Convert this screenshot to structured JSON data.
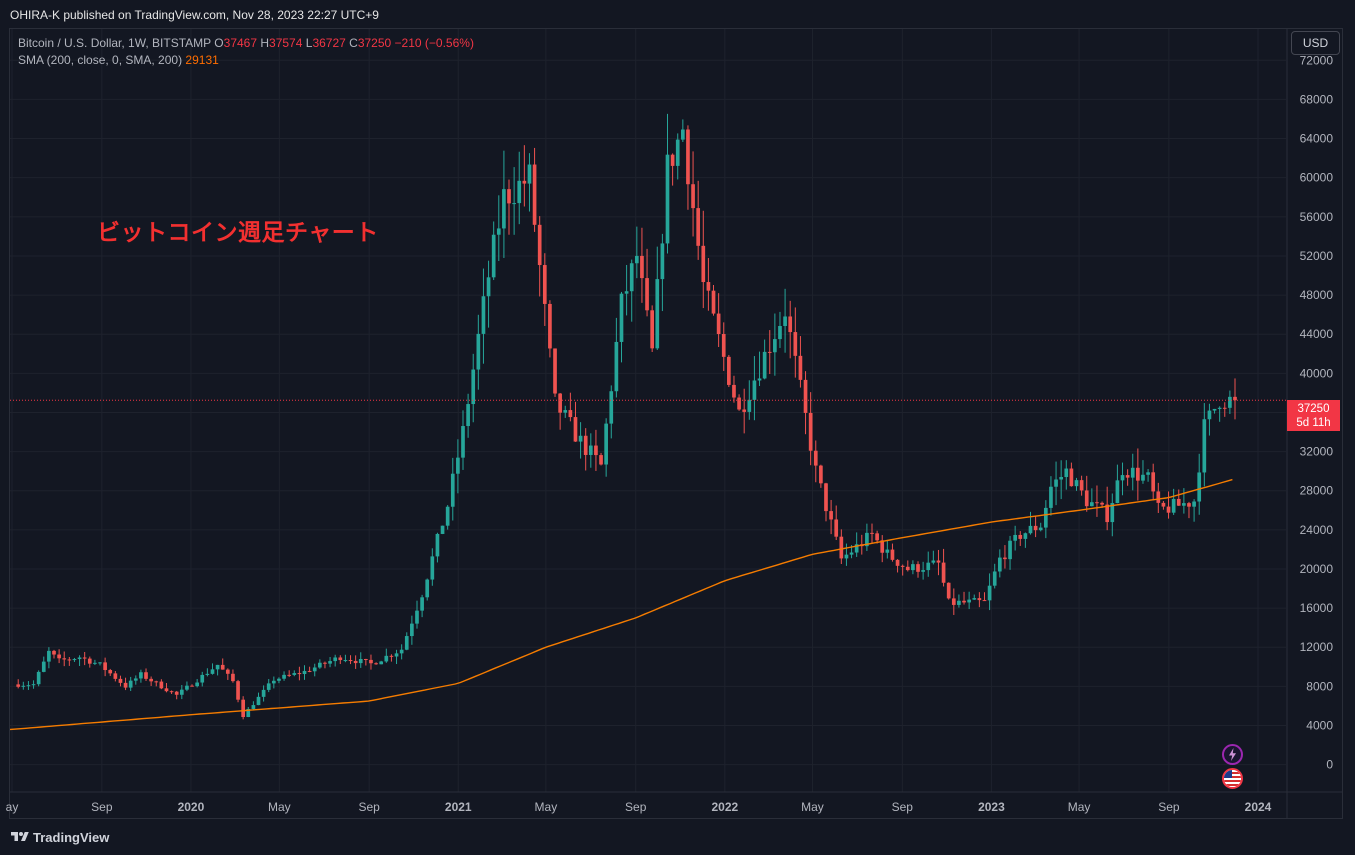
{
  "header": {
    "published": "OHIRA-K published on TradingView.com, Nov 28, 2023 22:27 UTC+9"
  },
  "legend": {
    "symbol": "Bitcoin / U.S. Dollar, 1W, BITSTAMP",
    "o_label": "O",
    "o": "37467",
    "h_label": "H",
    "h": "37574",
    "l_label": "L",
    "l": "36727",
    "c_label": "C",
    "c": "37250",
    "change": "−210 (−0.56%)",
    "sma_label": "SMA (200, close, 0, SMA, 200)",
    "sma_value": "29131"
  },
  "annotation": "ビットコイン週足チャート",
  "currency_button": "USD",
  "last_price": {
    "value": "37250",
    "countdown": "5d 11h"
  },
  "footer": {
    "brand": "TradingView"
  },
  "icons": {
    "flash": "lightning-icon",
    "flag": "us-flag-icon"
  },
  "colors": {
    "up": "#26a69a",
    "down": "#ef5350",
    "sma": "#f57c00",
    "background": "#131722",
    "grid": "#1e222d"
  },
  "chart_data": {
    "type": "candlestick",
    "interval": "1W",
    "y_ticks": [
      0,
      4000,
      8000,
      12000,
      16000,
      20000,
      24000,
      28000,
      32000,
      36000,
      40000,
      44000,
      48000,
      52000,
      56000,
      60000,
      64000,
      68000,
      72000
    ],
    "ylim": [
      -2800,
      75200
    ],
    "x_ticks": [
      "ay",
      "Sep",
      "2020",
      "May",
      "Sep",
      "2021",
      "May",
      "Sep",
      "2022",
      "May",
      "Sep",
      "2023",
      "May",
      "Sep",
      "2024"
    ],
    "x_tick_dates": [
      "2019-05-01",
      "2019-09-01",
      "2020-01-01",
      "2020-05-01",
      "2020-09-01",
      "2021-01-01",
      "2021-05-01",
      "2021-09-01",
      "2022-01-01",
      "2022-05-01",
      "2022-09-01",
      "2023-01-01",
      "2023-05-01",
      "2023-09-01",
      "2024-01-01"
    ],
    "bold_ticks": [
      "2020",
      "2021",
      "2022",
      "2023",
      "2024"
    ],
    "price_anchors": [
      [
        "2019-06-03",
        8200
      ],
      [
        "2019-06-24",
        11500
      ],
      [
        "2019-07-08",
        10600
      ],
      [
        "2019-08-05",
        11000
      ],
      [
        "2019-09-02",
        10200
      ],
      [
        "2019-10-07",
        8000
      ],
      [
        "2019-10-28",
        9200
      ],
      [
        "2019-12-16",
        7100
      ],
      [
        "2020-02-10",
        10200
      ],
      [
        "2020-03-02",
        8500
      ],
      [
        "2020-03-16",
        5000
      ],
      [
        "2020-04-27",
        8700
      ],
      [
        "2020-06-08",
        9500
      ],
      [
        "2020-07-27",
        11000
      ],
      [
        "2020-09-07",
        10300
      ],
      [
        "2020-10-19",
        11800
      ],
      [
        "2020-11-16",
        17500
      ],
      [
        "2020-12-21",
        26500
      ],
      [
        "2021-01-11",
        34000
      ],
      [
        "2021-02-15",
        50000
      ],
      [
        "2021-03-08",
        58000
      ],
      [
        "2021-04-12",
        60000
      ],
      [
        "2021-05-17",
        37000
      ],
      [
        "2021-06-21",
        33000
      ],
      [
        "2021-07-19",
        30500
      ],
      [
        "2021-08-16",
        47000
      ],
      [
        "2021-09-06",
        52000
      ],
      [
        "2021-09-27",
        42000
      ],
      [
        "2021-10-18",
        61000
      ],
      [
        "2021-11-08",
        65000
      ],
      [
        "2021-12-06",
        49000
      ],
      [
        "2022-01-24",
        36000
      ],
      [
        "2022-03-28",
        46500
      ],
      [
        "2022-05-09",
        30000
      ],
      [
        "2022-06-13",
        21000
      ],
      [
        "2022-07-25",
        23500
      ],
      [
        "2022-08-15",
        21500
      ],
      [
        "2022-09-12",
        20000
      ],
      [
        "2022-10-24",
        20500
      ],
      [
        "2022-11-07",
        16500
      ],
      [
        "2022-12-26",
        16600
      ],
      [
        "2023-01-16",
        21000
      ],
      [
        "2023-02-13",
        23500
      ],
      [
        "2023-03-13",
        24500
      ],
      [
        "2023-03-27",
        28400
      ],
      [
        "2023-04-17",
        30000
      ],
      [
        "2023-05-15",
        27000
      ],
      [
        "2023-06-12",
        25500
      ],
      [
        "2023-07-03",
        30300
      ],
      [
        "2023-08-07",
        29200
      ],
      [
        "2023-08-21",
        26000
      ],
      [
        "2023-09-18",
        26500
      ],
      [
        "2023-10-09",
        27000
      ],
      [
        "2023-10-23",
        34500
      ],
      [
        "2023-11-13",
        37400
      ],
      [
        "2023-11-27",
        37250
      ]
    ],
    "sma_anchors": [
      [
        "2019-05-01",
        3600
      ],
      [
        "2020-01-01",
        5100
      ],
      [
        "2020-09-01",
        6500
      ],
      [
        "2021-01-01",
        8300
      ],
      [
        "2021-05-01",
        12000
      ],
      [
        "2021-09-01",
        15000
      ],
      [
        "2022-01-01",
        18800
      ],
      [
        "2022-05-01",
        21500
      ],
      [
        "2022-09-01",
        23200
      ],
      [
        "2023-01-01",
        24800
      ],
      [
        "2023-05-01",
        26000
      ],
      [
        "2023-09-01",
        27300
      ],
      [
        "2023-11-27",
        29131
      ]
    ],
    "last_price": 37250,
    "sma_last": 29131
  }
}
